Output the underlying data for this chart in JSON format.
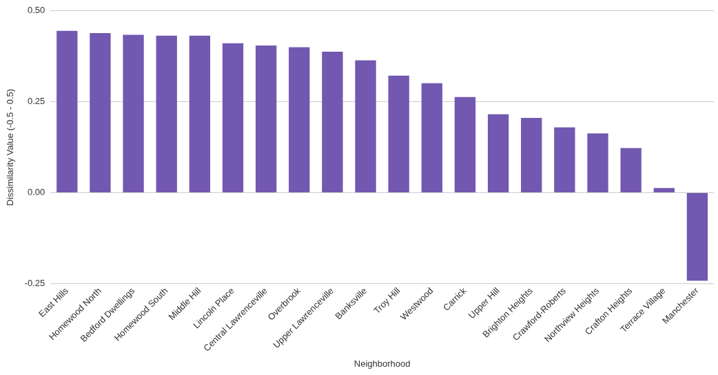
{
  "chart_data": {
    "type": "bar",
    "xlabel": "Neighborhood",
    "ylabel": "Dissimilarity Value (-0.5 - 0.5)",
    "categories": [
      "East Hills",
      "Homewood North",
      "Bedford Dwellings",
      "Homewood South",
      "Middle Hill",
      "Lincoln Place",
      "Central Lawrenceville",
      "Overbrook",
      "Upper Lawrenceville",
      "Banksville",
      "Troy Hill",
      "Westwood",
      "Carrick",
      "Upper Hill",
      "Brighton Heights",
      "Crawford-Roberts",
      "Northview Heights",
      "Crafton Heights",
      "Terrace Village",
      "Manchester"
    ],
    "values": [
      0.445,
      0.439,
      0.434,
      0.432,
      0.432,
      0.411,
      0.405,
      0.4,
      0.388,
      0.364,
      0.322,
      0.301,
      0.263,
      0.216,
      0.206,
      0.18,
      0.163,
      0.123,
      0.013,
      -0.242
    ],
    "color": "#7258b0",
    "ylim": [
      -0.25,
      0.5
    ],
    "yticks": [
      {
        "value": -0.25,
        "label": "-0.25"
      },
      {
        "value": 0,
        "label": "0.00"
      },
      {
        "value": 0.25,
        "label": "0.25"
      },
      {
        "value": 0.5,
        "label": "0.50"
      }
    ],
    "grid": "y"
  }
}
